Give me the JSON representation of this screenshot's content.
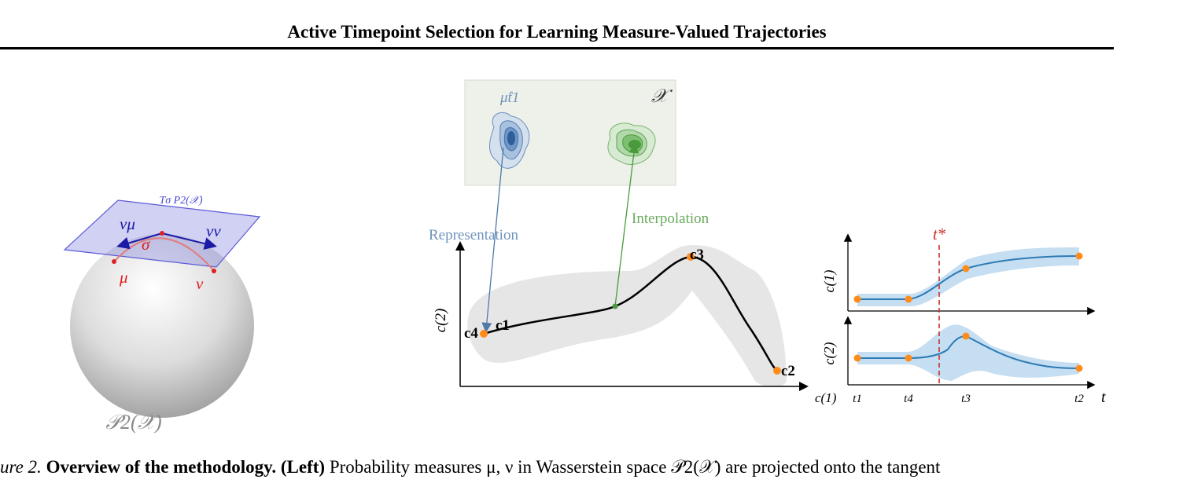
{
  "header": {
    "title": "Active Timepoint Selection for Learning Measure-Valued Trajectories"
  },
  "left_panel": {
    "tangent_label": "Tσ P2(𝒳)",
    "v_mu": "vμ",
    "v_nu": "vν",
    "sigma": "σ",
    "mu": "μ",
    "nu": "ν",
    "space_label": "𝒫2(𝒳)"
  },
  "middle_panel": {
    "inset_mu": "μ̂t1",
    "inset_space": "𝒳",
    "representation_label": "Representation",
    "interpolation_label": "Interpolation",
    "y_axis": "c(2)",
    "points": {
      "c1": "c1",
      "c2": "c2",
      "c3": "c3",
      "c4": "c4"
    }
  },
  "right_panel": {
    "t_star": "t*",
    "top_ylabel": "c(1)",
    "bottom_ylabel": "c(2)",
    "bottom_left_label": "c(1)",
    "ticks": [
      "t1",
      "t4",
      "t3",
      "t2"
    ],
    "x_axis": "t"
  },
  "caption": {
    "fig_label": "ure 2.",
    "bold_title": "Overview of the methodology.",
    "left_tag": "(Left)",
    "text": "Probability measures μ, ν in Wasserstein space 𝒫2(𝒳) are projected onto the tangent"
  },
  "colors": {
    "blue_plane": "#5b5bd6",
    "red": "#e02020",
    "orange": "#ff8c1a",
    "curve_blue": "#2c7bb6",
    "band_blue": "#c6def1",
    "gray_band": "#e6e6e6",
    "inset_bg": "#eef0ea",
    "representation": "#4f79a7",
    "interpolation": "#4a9a3c",
    "t_star_red": "#c9302c"
  }
}
